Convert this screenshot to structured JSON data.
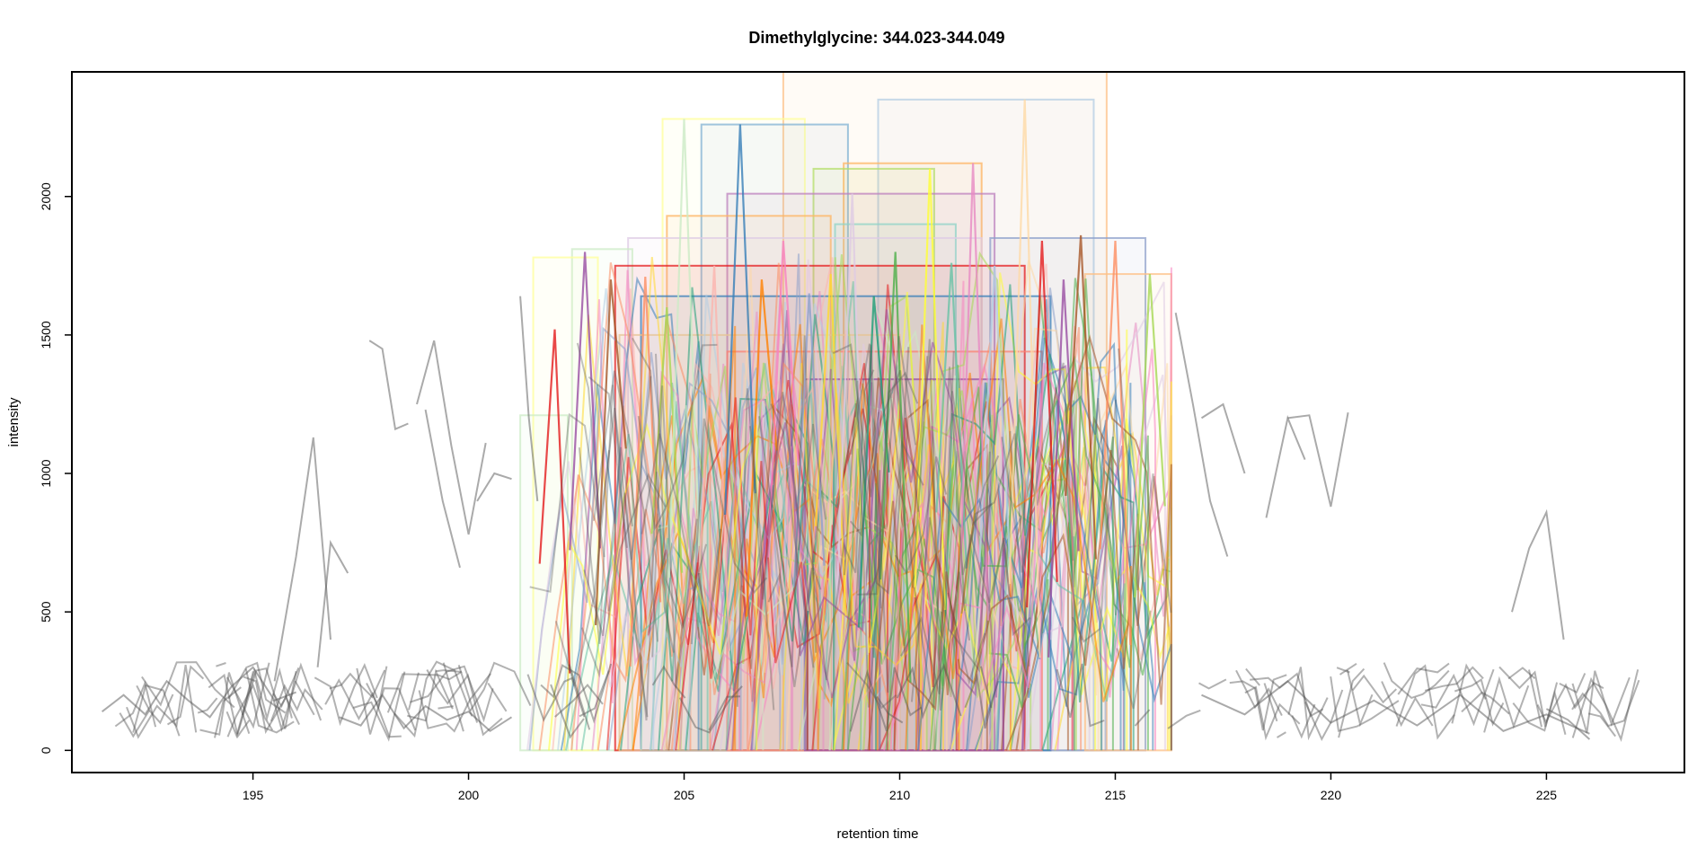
{
  "chart_data": {
    "type": "line",
    "title": "Dimethylglycine: 344.023-344.049",
    "xlabel": "retention time",
    "ylabel": "intensity",
    "xlim": [
      190.8,
      228.2
    ],
    "ylim": [
      -80,
      2450
    ],
    "x_ticks": [
      195,
      200,
      205,
      210,
      215,
      220,
      225
    ],
    "x_tick_labels": [
      "195",
      "200",
      "205",
      "210",
      "215",
      "220",
      "225"
    ],
    "y_ticks": [
      0,
      500,
      1000,
      1500,
      2000
    ],
    "y_tick_labels": [
      "0",
      "500",
      "1000",
      "1500",
      "2000"
    ],
    "grid": false,
    "legend": "none",
    "background_series": {
      "name": "",
      "color": "#555555",
      "description_x_range": [
        191.5,
        226.0
      ],
      "baseline_level": 150,
      "segments": [
        {
          "x": [
            191.5,
            192.0,
            192.5,
            193.0,
            193.5,
            194.0,
            194.5,
            195.0,
            195.5,
            196.0
          ],
          "y": [
            140,
            200,
            130,
            250,
            180,
            120,
            230,
            300,
            180,
            210
          ]
        },
        {
          "x": [
            195.5,
            196.0,
            196.4,
            196.8
          ],
          "y": [
            250,
            700,
            1130,
            400
          ]
        },
        {
          "x": [
            196.5,
            196.8,
            197.2
          ],
          "y": [
            300,
            750,
            640
          ]
        },
        {
          "x": [
            197.7,
            198.0,
            198.3,
            198.6
          ],
          "y": [
            1480,
            1450,
            1160,
            1180
          ]
        },
        {
          "x": [
            198.8,
            199.2,
            199.6,
            200.0,
            200.4
          ],
          "y": [
            1250,
            1480,
            1100,
            780,
            1110
          ]
        },
        {
          "x": [
            199.0,
            199.4,
            199.8
          ],
          "y": [
            1230,
            900,
            660
          ]
        },
        {
          "x": [
            200.2,
            200.6,
            201.0
          ],
          "y": [
            900,
            1000,
            980
          ]
        },
        {
          "x": [
            201.2,
            201.4,
            201.6
          ],
          "y": [
            1640,
            1200,
            900
          ]
        },
        {
          "x": [
            197.0,
            197.5,
            198.0,
            198.5,
            199.0,
            199.5,
            200.0,
            200.5,
            201.0
          ],
          "y": [
            120,
            90,
            200,
            80,
            160,
            110,
            140,
            70,
            120
          ]
        },
        {
          "x": [
            216.4,
            216.8,
            217.2,
            217.6
          ],
          "y": [
            1580,
            1250,
            900,
            700
          ]
        },
        {
          "x": [
            217.0,
            217.5,
            218.0
          ],
          "y": [
            1200,
            1250,
            1000
          ]
        },
        {
          "x": [
            218.5,
            219.0,
            219.4
          ],
          "y": [
            840,
            1200,
            1050
          ]
        },
        {
          "x": [
            219.0,
            219.5,
            220.0,
            220.4
          ],
          "y": [
            1200,
            1210,
            880,
            1220
          ]
        },
        {
          "x": [
            217.0,
            218.0,
            219.0,
            220.0,
            221.0,
            222.0,
            223.0,
            224.0,
            225.0,
            226.0
          ],
          "y": [
            200,
            130,
            250,
            100,
            180,
            90,
            200,
            70,
            130,
            60
          ]
        },
        {
          "x": [
            224.2,
            224.6,
            225.0,
            225.4
          ],
          "y": [
            500,
            730,
            860,
            400
          ]
        },
        {
          "x": [
            225.0,
            225.5,
            226.0
          ],
          "y": [
            150,
            110,
            40
          ]
        }
      ]
    },
    "peak_series": {
      "colors": [
        "#E41A1C",
        "#377EB8",
        "#4DAF4A",
        "#984EA3",
        "#FF7F00",
        "#FFFF33",
        "#A65628",
        "#F781BF",
        "#66C2A5",
        "#FC8D62",
        "#8DA0CB",
        "#E78AC3",
        "#A6D854",
        "#FFD92F",
        "#B3CDE3",
        "#CCEBC5",
        "#DECBE4",
        "#FED9A6",
        "#FBB4AE",
        "#1B9E77"
      ],
      "x_range": [
        201.3,
        216.3
      ],
      "max_intensity": 2350,
      "boxes": [
        {
          "x0": 207.3,
          "x1": 214.8,
          "y1": 2450,
          "color": "#FDC086"
        },
        {
          "x0": 209.5,
          "x1": 214.5,
          "y1": 2350,
          "color": "#B3CDE3"
        },
        {
          "x0": 204.5,
          "x1": 207.8,
          "y1": 2280,
          "color": "#FFFF99"
        },
        {
          "x0": 205.4,
          "x1": 208.8,
          "y1": 2260,
          "color": "#80B1D3"
        },
        {
          "x0": 208.7,
          "x1": 211.9,
          "y1": 2120,
          "color": "#FDB462"
        },
        {
          "x0": 208.0,
          "x1": 210.8,
          "y1": 2100,
          "color": "#B3DE69"
        },
        {
          "x0": 206.0,
          "x1": 212.2,
          "y1": 2010,
          "color": "#BC80BD"
        },
        {
          "x0": 204.6,
          "x1": 208.4,
          "y1": 1930,
          "color": "#FDB462"
        },
        {
          "x0": 208.5,
          "x1": 211.3,
          "y1": 1900,
          "color": "#8DD3C7"
        },
        {
          "x0": 203.7,
          "x1": 211.9,
          "y1": 1850,
          "color": "#DECBE4"
        },
        {
          "x0": 212.1,
          "x1": 215.7,
          "y1": 1850,
          "color": "#8DA0CB"
        },
        {
          "x0": 202.4,
          "x1": 203.8,
          "y1": 1810,
          "color": "#CCEBC5"
        },
        {
          "x0": 201.5,
          "x1": 203.0,
          "y1": 1780,
          "color": "#FFFF99"
        },
        {
          "x0": 203.4,
          "x1": 212.9,
          "y1": 1750,
          "color": "#E41A1C"
        },
        {
          "x0": 214.3,
          "x1": 216.3,
          "y1": 1720,
          "color": "#FDC086"
        },
        {
          "x0": 204.0,
          "x1": 213.5,
          "y1": 1640,
          "color": "#377EB8"
        },
        {
          "x0": 201.2,
          "x1": 202.3,
          "y1": 1210,
          "color": "#CCEBC5"
        },
        {
          "x0": 203.5,
          "x1": 210.0,
          "y1": 1500,
          "color": "#E5C494"
        },
        {
          "x0": 206.0,
          "x1": 213.3,
          "y1": 1440,
          "color": "#FB8072"
        },
        {
          "x0": 207.8,
          "x1": 212.4,
          "y1": 1340,
          "color": "#984EA3"
        }
      ],
      "peaks": [
        {
          "x": 202.0,
          "y": 1520
        },
        {
          "x": 202.7,
          "y": 1800
        },
        {
          "x": 203.3,
          "y": 1700
        },
        {
          "x": 204.1,
          "y": 1710
        },
        {
          "x": 204.6,
          "y": 1600
        },
        {
          "x": 205.0,
          "y": 2280
        },
        {
          "x": 205.7,
          "y": 1750
        },
        {
          "x": 206.3,
          "y": 2260
        },
        {
          "x": 206.8,
          "y": 1700
        },
        {
          "x": 207.3,
          "y": 1840
        },
        {
          "x": 207.9,
          "y": 1650
        },
        {
          "x": 208.4,
          "y": 1720
        },
        {
          "x": 208.9,
          "y": 2010
        },
        {
          "x": 209.4,
          "y": 1640
        },
        {
          "x": 209.9,
          "y": 1800
        },
        {
          "x": 210.7,
          "y": 2100
        },
        {
          "x": 211.2,
          "y": 1760
        },
        {
          "x": 211.7,
          "y": 2120
        },
        {
          "x": 212.2,
          "y": 1750
        },
        {
          "x": 212.9,
          "y": 2350
        },
        {
          "x": 213.3,
          "y": 1840
        },
        {
          "x": 213.8,
          "y": 1700
        },
        {
          "x": 214.2,
          "y": 1860
        },
        {
          "x": 215.0,
          "y": 1840
        },
        {
          "x": 215.8,
          "y": 1720
        }
      ]
    }
  }
}
